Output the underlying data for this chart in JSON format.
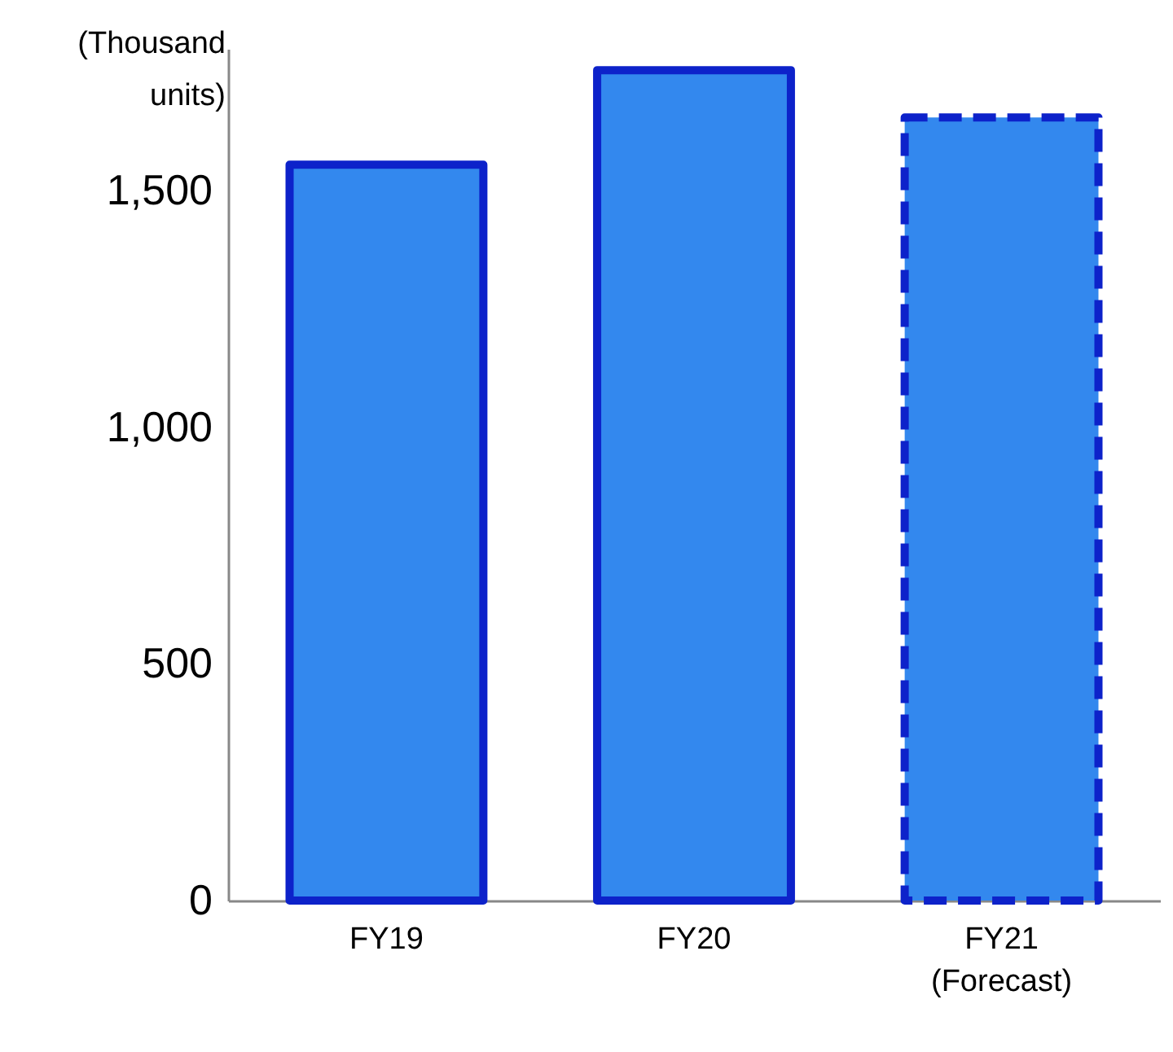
{
  "chart_data": {
    "type": "bar",
    "ylabel": "(Thousand units)",
    "categories": [
      "FY19",
      "FY20",
      "FY21\n(Forecast)"
    ],
    "series": [
      {
        "color": "#3388ee",
        "values": [
          1555,
          1755,
          null
        ]
      },
      {
        "color": "#3388ee",
        "values": [
          null,
          null,
          1655
        ],
        "line_style": "dashed"
      }
    ],
    "ylim": [
      0,
      1800
    ],
    "yticks": [
      0,
      500,
      {
        "value": 1000,
        "label": "1,000"
      },
      {
        "value": 1500,
        "label": "1,500"
      }
    ]
  }
}
